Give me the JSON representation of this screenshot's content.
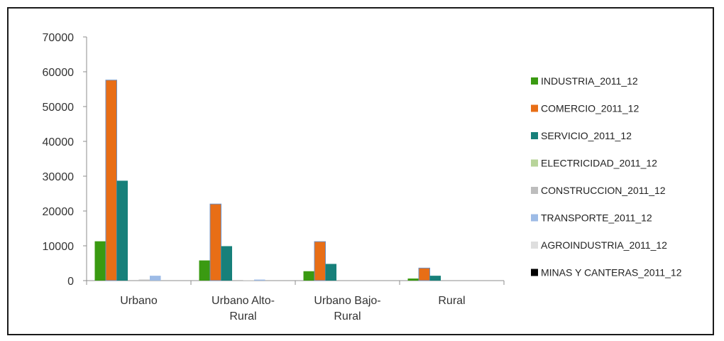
{
  "chart_data": {
    "type": "bar",
    "title": "",
    "xlabel": "",
    "ylabel": "",
    "ylim": [
      0,
      70000
    ],
    "yticks": [
      0,
      10000,
      20000,
      30000,
      40000,
      50000,
      60000,
      70000
    ],
    "grid": false,
    "legend_position": "right",
    "categories": [
      [
        "Urbano"
      ],
      [
        "Urbano Alto-",
        "Rural"
      ],
      [
        "Urbano Bajo-",
        "Rural"
      ],
      [
        "Rural"
      ]
    ],
    "series": [
      {
        "name": "INDUSTRIA_2011_12",
        "color": "#3a9a11",
        "values": [
          11300,
          5800,
          2700,
          600
        ]
      },
      {
        "name": "COMERCIO_2011_12",
        "color": "#e86e16",
        "values": [
          57600,
          22000,
          11200,
          3600
        ]
      },
      {
        "name": "SERVICIO_2011_12",
        "color": "#17807a",
        "values": [
          28700,
          9900,
          4800,
          1400
        ]
      },
      {
        "name": "ELECTRICIDAD_2011_12",
        "color": "#b8d49a",
        "values": [
          0,
          0,
          0,
          0
        ]
      },
      {
        "name": "CONSTRUCCION_2011_12",
        "color": "#bdbdbd",
        "values": [
          300,
          100,
          0,
          0
        ]
      },
      {
        "name": "TRANSPORTE_2011_12",
        "color": "#9dbbe6",
        "values": [
          1400,
          300,
          0,
          0
        ]
      },
      {
        "name": "AGROINDUSTRIA_2011_12",
        "color": "#dedede",
        "values": [
          0,
          0,
          0,
          0
        ]
      },
      {
        "name": "MINAS Y CANTERAS_2011_12",
        "color": "#000000",
        "values": [
          0,
          0,
          0,
          0
        ]
      }
    ]
  }
}
